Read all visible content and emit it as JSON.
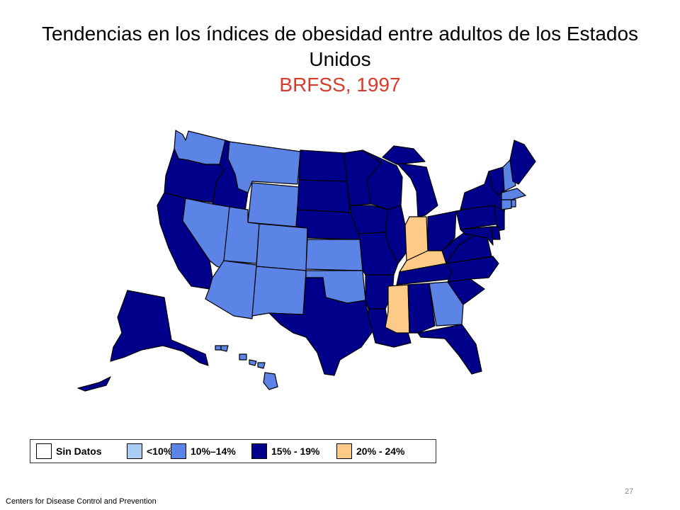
{
  "title": "Tendencias en los índices de obesidad entre adultos de los Estados Unidos",
  "subtitle": "BRFSS, 1997",
  "colors": {
    "no_data": "#ffffff",
    "lt10": "#a9cdf5",
    "b10_14": "#5b84e6",
    "b15_19": "#00008b",
    "b20_24": "#fdca87",
    "border": "#000000",
    "subtitle": "#d83a2b"
  },
  "legend": [
    {
      "label": "Sin Datos",
      "color_key": "no_data"
    },
    {
      "label": "<10%",
      "color_key": "lt10"
    },
    {
      "label": "10%–14%",
      "color_key": "b10_14"
    },
    {
      "label": "15% - 19%",
      "color_key": "b15_19"
    },
    {
      "label": "20% - 24%",
      "color_key": "b20_24"
    }
  ],
  "states": [
    {
      "name": "Washington",
      "category": "b10_14"
    },
    {
      "name": "Oregon",
      "category": "b15_19"
    },
    {
      "name": "California",
      "category": "b15_19"
    },
    {
      "name": "Idaho",
      "category": "b15_19"
    },
    {
      "name": "Nevada",
      "category": "b10_14"
    },
    {
      "name": "Montana",
      "category": "b10_14"
    },
    {
      "name": "Wyoming",
      "category": "b10_14"
    },
    {
      "name": "Utah",
      "category": "b10_14"
    },
    {
      "name": "Arizona",
      "category": "b10_14"
    },
    {
      "name": "Colorado",
      "category": "b10_14"
    },
    {
      "name": "New Mexico",
      "category": "b10_14"
    },
    {
      "name": "North Dakota",
      "category": "b15_19"
    },
    {
      "name": "South Dakota",
      "category": "b15_19"
    },
    {
      "name": "Nebraska",
      "category": "b15_19"
    },
    {
      "name": "Kansas",
      "category": "b10_14"
    },
    {
      "name": "Oklahoma",
      "category": "b10_14"
    },
    {
      "name": "Texas",
      "category": "b15_19"
    },
    {
      "name": "Minnesota",
      "category": "b15_19"
    },
    {
      "name": "Iowa",
      "category": "b15_19"
    },
    {
      "name": "Missouri",
      "category": "b15_19"
    },
    {
      "name": "Arkansas",
      "category": "b15_19"
    },
    {
      "name": "Louisiana",
      "category": "b15_19"
    },
    {
      "name": "Wisconsin",
      "category": "b15_19"
    },
    {
      "name": "Illinois",
      "category": "b15_19"
    },
    {
      "name": "Michigan",
      "category": "b15_19"
    },
    {
      "name": "Indiana",
      "category": "b20_24"
    },
    {
      "name": "Ohio",
      "category": "b15_19"
    },
    {
      "name": "Kentucky",
      "category": "b20_24"
    },
    {
      "name": "Tennessee",
      "category": "b15_19"
    },
    {
      "name": "Mississippi",
      "category": "b20_24"
    },
    {
      "name": "Alabama",
      "category": "b15_19"
    },
    {
      "name": "Georgia",
      "category": "b10_14"
    },
    {
      "name": "Florida",
      "category": "b15_19"
    },
    {
      "name": "South Carolina",
      "category": "b15_19"
    },
    {
      "name": "North Carolina",
      "category": "b15_19"
    },
    {
      "name": "Virginia",
      "category": "b15_19"
    },
    {
      "name": "West Virginia",
      "category": "b15_19"
    },
    {
      "name": "Pennsylvania",
      "category": "b15_19"
    },
    {
      "name": "New York",
      "category": "b15_19"
    },
    {
      "name": "Vermont",
      "category": "b15_19"
    },
    {
      "name": "New Hampshire",
      "category": "b10_14"
    },
    {
      "name": "Maine",
      "category": "b15_19"
    },
    {
      "name": "Massachusetts",
      "category": "b10_14"
    },
    {
      "name": "Connecticut",
      "category": "b10_14"
    },
    {
      "name": "Rhode Island",
      "category": "b10_14"
    },
    {
      "name": "New Jersey",
      "category": "b15_19"
    },
    {
      "name": "Delaware",
      "category": "b15_19"
    },
    {
      "name": "Maryland",
      "category": "b15_19"
    },
    {
      "name": "Alaska",
      "category": "b15_19"
    },
    {
      "name": "Hawaii",
      "category": "b10_14"
    }
  ],
  "footer": "Centers  for Disease Control and Prevention",
  "page_number": "27"
}
